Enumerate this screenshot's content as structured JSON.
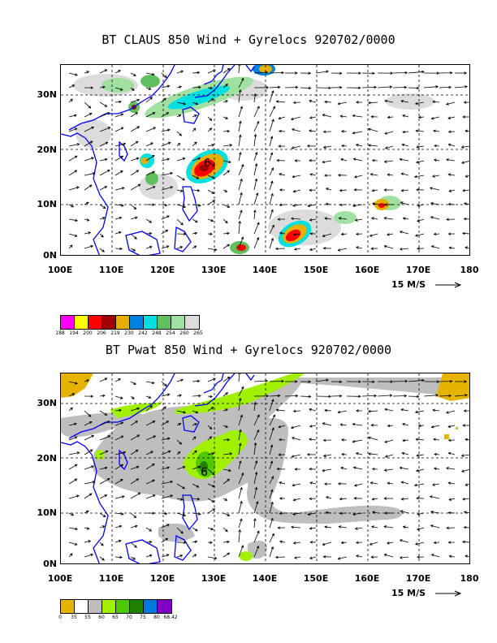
{
  "panels": [
    {
      "title": "BT CLAUS 850 Wind + Gyrelocs 920702/0000",
      "lat_labels": [
        "30N",
        "20N",
        "10N",
        "0N"
      ],
      "lon_labels": [
        "100E",
        "110E",
        "120E",
        "130E",
        "140E",
        "150E",
        "160E",
        "170E",
        "180"
      ],
      "reference_vector": "15 M/S",
      "storm_symbol": "6",
      "legend": {
        "colors": [
          "#ff00ff",
          "#ffff00",
          "#ff0000",
          "#a00000",
          "#e6af00",
          "#0080e0",
          "#00e0e0",
          "#60c060",
          "#a0e0a0",
          "#dcdcdc"
        ],
        "ticks": [
          "188",
          "194",
          "200",
          "206",
          "219",
          "230",
          "242",
          "248",
          "254",
          "260",
          "265"
        ]
      }
    },
    {
      "title": "BT Pwat 850 Wind + Gyrelocs 920702/0000",
      "lat_labels": [
        "30N",
        "20N",
        "10N",
        "0N"
      ],
      "lon_labels": [
        "100E",
        "110E",
        "120E",
        "130E",
        "140E",
        "150E",
        "160E",
        "170E",
        "180"
      ],
      "reference_vector": "15 M/S",
      "storm_symbol": "6",
      "legend": {
        "colors": [
          "#e6b400",
          "#ffffff",
          "#bebebe",
          "#a0f000",
          "#50c800",
          "#208000",
          "#0078dc",
          "#8000c8"
        ],
        "ticks": [
          "0",
          "35",
          "55",
          "60",
          "65",
          "70",
          "75",
          "80",
          "68.42"
        ]
      }
    }
  ],
  "map_extent": {
    "lon": [
      100,
      180
    ],
    "lat": [
      0,
      35
    ]
  }
}
